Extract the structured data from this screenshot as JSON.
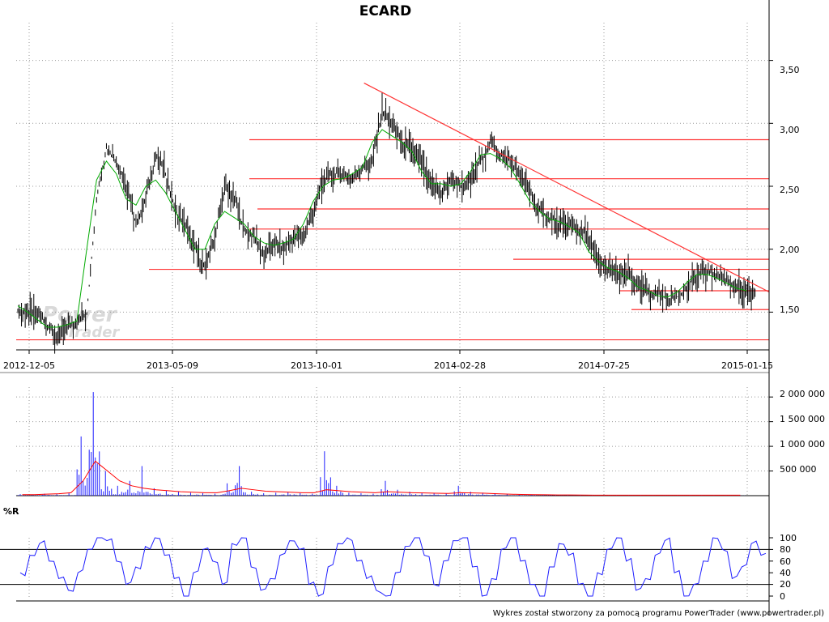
{
  "title": "ECARD",
  "footer": "Wykres został stworzony za pomocą programu PowerTrader (www.powertrader.pl)",
  "watermark": {
    "line1": "Power",
    "line2": "Trader"
  },
  "colors": {
    "price": "#000000",
    "ma": "#00aa00",
    "support": "#ff3333",
    "volume": "#1f1fff",
    "volume_ma": "#ff0000",
    "r": "#1f1fff"
  },
  "chart_data": [
    {
      "type": "line",
      "title": "ECARD",
      "x_tick_labels": [
        "2012-12-05",
        "2013-05-09",
        "2013-10-01",
        "2014-02-28",
        "2014-07-25",
        "2015-01-15"
      ],
      "y_tick_labels": [
        "1,50",
        "2,00",
        "2,50",
        "3,00",
        "3,50"
      ],
      "ylim": [
        1.2,
        3.8
      ],
      "grid": true,
      "series": [
        {
          "values": [
            1.5,
            1.48,
            1.4,
            1.3,
            1.38,
            1.42,
            1.48,
            2.4,
            2.8,
            2.7,
            2.5,
            2.2,
            2.4,
            2.75,
            2.6,
            2.3,
            2.2,
            2.0,
            1.85,
            2.1,
            2.5,
            2.4,
            2.15,
            2.1,
            1.95,
            2.05,
            2.0,
            2.1,
            2.1,
            2.3,
            2.55,
            2.6,
            2.6,
            2.55,
            2.65,
            2.7,
            3.1,
            3.0,
            2.85,
            2.8,
            2.7,
            2.5,
            2.45,
            2.55,
            2.5,
            2.55,
            2.7,
            2.85,
            2.75,
            2.7,
            2.6,
            2.45,
            2.3,
            2.25,
            2.2,
            2.2,
            2.15,
            2.1,
            1.88,
            1.85,
            1.8,
            1.8,
            1.72,
            1.65,
            1.65,
            1.6,
            1.62,
            1.7,
            1.8,
            1.82,
            1.8,
            1.75,
            1.7,
            1.65,
            1.65
          ]
        },
        {
          "values": [
            1.55,
            1.5,
            1.44,
            1.38,
            1.38,
            1.4,
            1.43,
            2.0,
            2.55,
            2.7,
            2.6,
            2.4,
            2.35,
            2.5,
            2.55,
            2.45,
            2.3,
            2.15,
            2.0,
            2.0,
            2.2,
            2.3,
            2.25,
            2.2,
            2.1,
            2.05,
            2.03,
            2.05,
            2.08,
            2.2,
            2.38,
            2.5,
            2.55,
            2.56,
            2.6,
            2.65,
            2.85,
            2.95,
            2.9,
            2.85,
            2.78,
            2.62,
            2.52,
            2.52,
            2.5,
            2.52,
            2.62,
            2.75,
            2.76,
            2.72,
            2.65,
            2.52,
            2.38,
            2.3,
            2.24,
            2.22,
            2.18,
            2.13,
            1.98,
            1.9,
            1.85,
            1.82,
            1.77,
            1.7,
            1.67,
            1.63,
            1.62,
            1.66,
            1.74,
            1.8,
            1.8,
            1.77,
            1.73,
            1.69,
            1.67
          ]
        }
      ],
      "horizontal_levels": [
        2.87,
        2.56,
        2.32,
        2.16,
        1.92,
        1.84,
        1.67,
        1.52,
        1.28
      ],
      "trendline": [
        [
          0.462,
          3.32
        ],
        [
          1.0,
          1.66
        ]
      ]
    },
    {
      "type": "bar",
      "y_tick_labels": [
        "500 000",
        "1 000 000",
        "1 500 000",
        "2 000 000"
      ],
      "ylim": [
        0,
        2200000
      ],
      "grid": true,
      "series": [
        {
          "values": [
            30000,
            20000,
            40000,
            30000,
            50000,
            1200000,
            2100000,
            500000,
            200000,
            300000,
            600000,
            150000,
            100000,
            80000,
            60000,
            50000,
            40000,
            250000,
            600000,
            80000,
            50000,
            60000,
            70000,
            50000,
            40000,
            900000,
            200000,
            60000,
            50000,
            40000,
            300000,
            120000,
            80000,
            60000,
            50000,
            40000,
            200000,
            80000,
            60000,
            50000,
            30000,
            20000,
            20000,
            20000,
            15000,
            15000,
            10000,
            10000,
            10000,
            10000,
            10000,
            10000,
            10000,
            10000,
            10000,
            10000,
            10000,
            10000,
            10000,
            10000
          ]
        },
        {
          "values": [
            20000,
            20000,
            30000,
            40000,
            60000,
            300000,
            700000,
            500000,
            300000,
            200000,
            150000,
            120000,
            100000,
            80000,
            70000,
            60000,
            60000,
            100000,
            150000,
            120000,
            90000,
            80000,
            70000,
            60000,
            60000,
            120000,
            100000,
            80000,
            70000,
            60000,
            80000,
            70000,
            60000,
            55000,
            50000,
            45000,
            60000,
            55000,
            50000,
            40000,
            30000,
            25000,
            20000,
            18000,
            15000,
            14000,
            12000,
            11000,
            10000,
            10000,
            10000,
            10000,
            10000,
            10000,
            10000,
            10000,
            10000,
            10000,
            10000,
            10000
          ]
        }
      ]
    },
    {
      "type": "line",
      "title": "%R",
      "y_tick_labels": [
        "0",
        "20",
        "40",
        "60",
        "80",
        "100"
      ],
      "ylim": [
        0,
        100
      ],
      "levels": [
        20,
        80
      ],
      "series": [
        {
          "values": [
            40,
            70,
            90,
            60,
            30,
            10,
            40,
            80,
            100,
            95,
            60,
            20,
            50,
            85,
            100,
            70,
            30,
            0,
            40,
            80,
            60,
            20,
            90,
            100,
            50,
            10,
            30,
            70,
            95,
            80,
            20,
            0,
            50,
            90,
            100,
            60,
            30,
            10,
            0,
            40,
            85,
            100,
            70,
            20,
            60,
            95,
            100,
            50,
            0,
            30,
            80,
            100,
            60,
            20,
            0,
            50,
            90,
            70,
            20,
            0,
            40,
            80,
            100,
            60,
            10,
            30,
            70,
            95,
            40,
            0,
            20,
            60,
            100,
            80,
            30,
            50,
            90,
            70
          ]
        }
      ]
    }
  ]
}
